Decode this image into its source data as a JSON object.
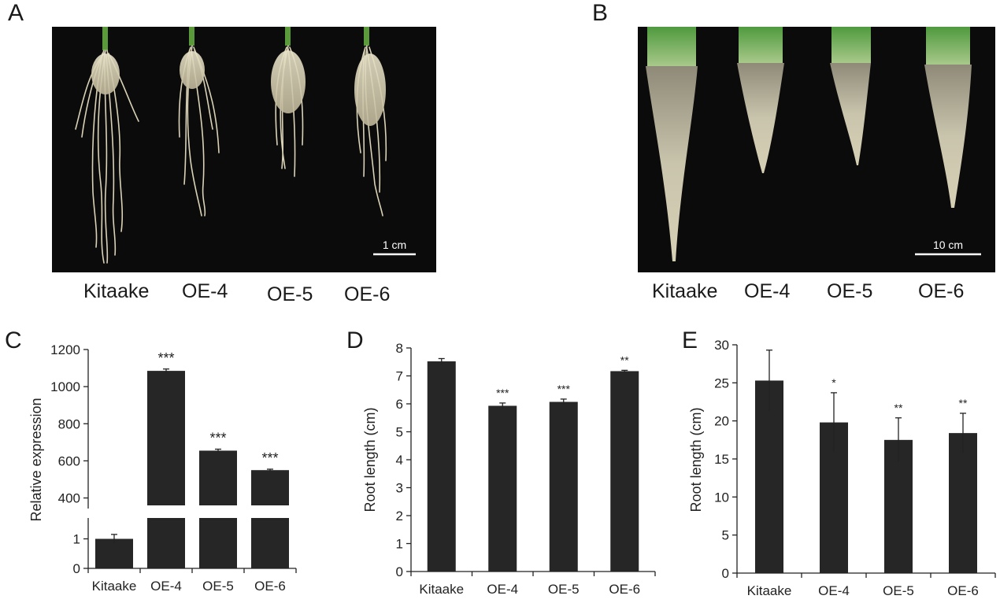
{
  "figure": {
    "panel_letters": [
      "A",
      "B",
      "C",
      "D",
      "E"
    ],
    "panel_a": {
      "scale_bar": "1 cm",
      "captions": [
        "Kitaake",
        "OE-4",
        "OE-5",
        "OE-6"
      ]
    },
    "panel_b": {
      "scale_bar": "10 cm",
      "captions": [
        "Kitaake",
        "OE-4",
        "OE-5",
        "OE-6"
      ]
    }
  },
  "chart_data": [
    {
      "type": "bar",
      "panel": "C",
      "ylabel": "Relative expression",
      "categories": [
        "Kitaake",
        "OE-4",
        "OE-5",
        "OE-6"
      ],
      "values": [
        1,
        1085,
        655,
        550
      ],
      "errors": [
        0.15,
        10,
        8,
        5
      ],
      "significance": [
        "",
        "***",
        "***",
        "***"
      ],
      "axis_break": true,
      "lower_segment": {
        "ylim": [
          0,
          1.6
        ],
        "ticks": [
          "0",
          "1"
        ]
      },
      "upper_segment": {
        "ylim": [
          360,
          1200
        ],
        "ticks": [
          "400",
          "600",
          "800",
          "1000",
          "1200"
        ]
      },
      "bar_color": "#262626"
    },
    {
      "type": "bar",
      "panel": "D",
      "ylabel": "Root length (cm)",
      "categories": [
        "Kitaake",
        "OE-4",
        "OE-5",
        "OE-6"
      ],
      "values": [
        7.52,
        5.93,
        6.07,
        7.17
      ],
      "errors": [
        0.1,
        0.1,
        0.1,
        0.03
      ],
      "significance": [
        "",
        "***",
        "***",
        "**"
      ],
      "ylim": [
        0,
        8
      ],
      "ticks": [
        "0",
        "1",
        "2",
        "3",
        "4",
        "5",
        "6",
        "7",
        "8"
      ],
      "bar_color": "#262626"
    },
    {
      "type": "bar",
      "panel": "E",
      "ylabel": "Root length (cm)",
      "categories": [
        "Kitaake",
        "OE-4",
        "OE-5",
        "OE-6"
      ],
      "values": [
        25.3,
        19.8,
        17.5,
        18.4
      ],
      "errors": [
        4.0,
        3.9,
        2.9,
        2.6
      ],
      "significance": [
        "",
        "*",
        "**",
        "**"
      ],
      "ylim": [
        0,
        30
      ],
      "ticks": [
        "0",
        "5",
        "10",
        "15",
        "20",
        "25",
        "30"
      ],
      "bar_color": "#262626"
    }
  ]
}
